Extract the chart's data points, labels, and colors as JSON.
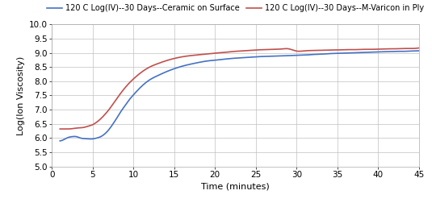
{
  "title": "",
  "xlabel": "Time (minutes)",
  "ylabel": "Log(Ion Viscosity)",
  "xlim": [
    0,
    45
  ],
  "ylim": [
    5,
    10
  ],
  "xticks": [
    0,
    5,
    10,
    15,
    20,
    25,
    30,
    35,
    40,
    45
  ],
  "yticks": [
    5,
    5.5,
    6,
    6.5,
    7,
    7.5,
    8,
    8.5,
    9,
    9.5,
    10
  ],
  "legend1": "120 C Log(IV)--30 Days--Ceramic on Surface",
  "legend2": "120 C Log(IV)--30 Days--M-Varicon in Ply",
  "color1": "#4472C4",
  "color2": "#C0504D",
  "blue_x": [
    1.0,
    1.5,
    2.0,
    2.5,
    3.0,
    3.5,
    4.0,
    4.5,
    5.0,
    5.5,
    6.0,
    6.5,
    7.0,
    7.5,
    8.0,
    8.5,
    9.0,
    9.5,
    10.0,
    11.0,
    12.0,
    13.0,
    14.0,
    15.0,
    16.0,
    17.0,
    18.0,
    19.0,
    20.0,
    21.0,
    22.0,
    23.0,
    24.0,
    25.0,
    26.0,
    27.0,
    28.0,
    29.0,
    30.0,
    31.0,
    32.0,
    33.0,
    34.0,
    35.0,
    36.0,
    37.0,
    38.0,
    39.0,
    40.0,
    41.0,
    42.0,
    43.0,
    44.0,
    45.0
  ],
  "blue_y": [
    5.9,
    5.95,
    6.02,
    6.05,
    6.05,
    6.0,
    5.98,
    5.97,
    5.97,
    6.0,
    6.05,
    6.15,
    6.3,
    6.5,
    6.72,
    6.95,
    7.15,
    7.35,
    7.52,
    7.82,
    8.05,
    8.2,
    8.33,
    8.44,
    8.53,
    8.6,
    8.66,
    8.71,
    8.74,
    8.77,
    8.8,
    8.82,
    8.84,
    8.86,
    8.87,
    8.88,
    8.89,
    8.9,
    8.91,
    8.92,
    8.94,
    8.95,
    8.97,
    8.98,
    8.99,
    9.0,
    9.01,
    9.02,
    9.03,
    9.04,
    9.05,
    9.05,
    9.06,
    9.07
  ],
  "red_x": [
    1.0,
    1.5,
    2.0,
    2.5,
    3.0,
    3.5,
    4.0,
    4.5,
    5.0,
    5.5,
    6.0,
    6.5,
    7.0,
    7.5,
    8.0,
    8.5,
    9.0,
    9.5,
    10.0,
    11.0,
    12.0,
    13.0,
    14.0,
    15.0,
    16.0,
    17.0,
    18.0,
    19.0,
    20.0,
    21.0,
    22.0,
    23.0,
    24.0,
    25.0,
    26.0,
    27.0,
    28.0,
    29.0,
    30.0,
    31.0,
    32.0,
    33.0,
    34.0,
    35.0,
    36.0,
    37.0,
    38.0,
    39.0,
    40.0,
    41.0,
    42.0,
    43.0,
    44.0,
    45.0
  ],
  "red_y": [
    6.32,
    6.32,
    6.32,
    6.33,
    6.35,
    6.36,
    6.38,
    6.42,
    6.47,
    6.56,
    6.68,
    6.83,
    7.0,
    7.2,
    7.4,
    7.6,
    7.78,
    7.94,
    8.08,
    8.32,
    8.5,
    8.62,
    8.72,
    8.8,
    8.86,
    8.9,
    8.93,
    8.96,
    8.99,
    9.01,
    9.04,
    9.06,
    9.08,
    9.1,
    9.11,
    9.12,
    9.13,
    9.14,
    9.06,
    9.07,
    9.08,
    9.09,
    9.1,
    9.1,
    9.11,
    9.11,
    9.12,
    9.12,
    9.13,
    9.14,
    9.14,
    9.15,
    9.15,
    9.17
  ],
  "bg_color": "#FFFFFF",
  "plot_bg_color": "#FFFFFF",
  "grid_color": "#C0C0C0",
  "linewidth": 1.2,
  "legend_fontsize": 7.0,
  "axis_label_fontsize": 8,
  "tick_fontsize": 7.5
}
